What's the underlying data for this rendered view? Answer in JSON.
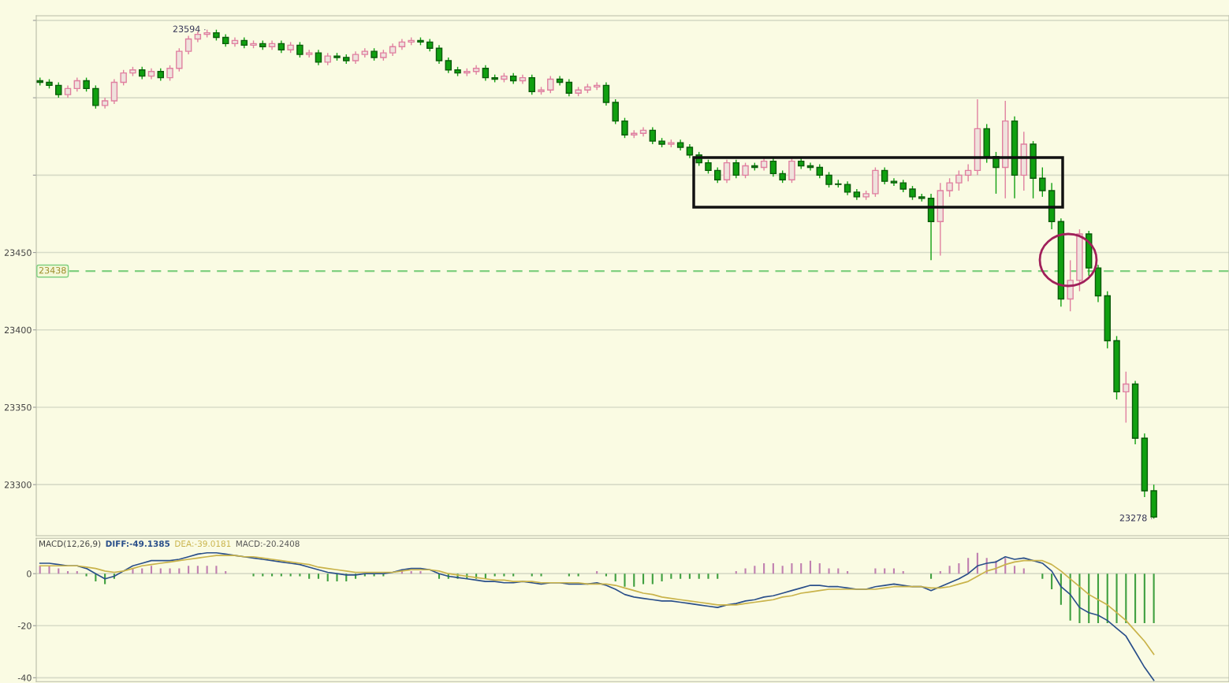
{
  "chart_data": [
    {
      "type": "candlestick",
      "tick_labels": "y",
      "grid": "y",
      "categories": [
        null,
        null,
        null,
        null,
        null,
        null,
        null,
        null,
        null,
        null,
        null,
        null,
        null,
        null,
        null,
        null,
        null,
        null,
        null,
        null,
        null,
        null,
        null,
        null,
        null,
        null,
        null,
        null,
        null,
        null,
        null,
        null,
        null,
        null,
        null,
        null,
        null,
        null,
        null,
        null,
        null,
        null,
        null,
        null,
        null,
        null,
        null,
        null,
        null,
        null,
        null,
        null,
        null,
        null,
        null,
        null,
        null,
        null,
        null,
        null,
        null,
        null,
        null,
        null,
        null,
        null,
        null,
        null,
        null,
        null,
        null,
        null,
        null,
        null,
        null,
        null,
        null,
        null,
        null,
        null,
        null,
        null,
        null,
        null,
        null,
        null,
        null,
        null,
        null,
        null,
        null,
        null,
        null,
        null,
        null,
        null,
        null,
        null,
        null,
        null,
        null,
        null,
        null,
        null,
        null,
        null,
        null,
        null,
        null,
        null,
        null,
        null,
        null,
        null,
        null,
        null,
        null,
        null,
        null,
        null,
        null
      ],
      "ohlc": [
        [
          23561,
          23563,
          23558,
          23560
        ],
        [
          23560,
          23562,
          23556,
          23558
        ],
        [
          23558,
          23560,
          23550,
          23552
        ],
        [
          23552,
          23558,
          23550,
          23556
        ],
        [
          23556,
          23563,
          23554,
          23561
        ],
        [
          23561,
          23563,
          23554,
          23556
        ],
        [
          23556,
          23558,
          23543,
          23545
        ],
        [
          23545,
          23550,
          23543,
          23548
        ],
        [
          23548,
          23562,
          23546,
          23560
        ],
        [
          23560,
          23568,
          23558,
          23566
        ],
        [
          23566,
          23570,
          23564,
          23568
        ],
        [
          23568,
          23570,
          23562,
          23564
        ],
        [
          23564,
          23569,
          23562,
          23567
        ],
        [
          23567,
          23569,
          23561,
          23563
        ],
        [
          23563,
          23571,
          23561,
          23569
        ],
        [
          23569,
          23582,
          23567,
          23580
        ],
        [
          23580,
          23590,
          23578,
          23588
        ],
        [
          23588,
          23593,
          23586,
          23591
        ],
        [
          23591,
          23594,
          23589,
          23592
        ],
        [
          23592,
          23594,
          23587,
          23589
        ],
        [
          23589,
          23591,
          23583,
          23585
        ],
        [
          23585,
          23589,
          23583,
          23587
        ],
        [
          23587,
          23589,
          23582,
          23584
        ],
        [
          23584,
          23587,
          23582,
          23585
        ],
        [
          23585,
          23587,
          23581,
          23583
        ],
        [
          23583,
          23587,
          23581,
          23585
        ],
        [
          23585,
          23587,
          23579,
          23581
        ],
        [
          23581,
          23586,
          23579,
          23584
        ],
        [
          23584,
          23586,
          23576,
          23578
        ],
        [
          23578,
          23581,
          23576,
          23579
        ],
        [
          23579,
          23581,
          23571,
          23573
        ],
        [
          23573,
          23579,
          23571,
          23577
        ],
        [
          23577,
          23579,
          23574,
          23576
        ],
        [
          23576,
          23578,
          23572,
          23574
        ],
        [
          23574,
          23580,
          23572,
          23578
        ],
        [
          23578,
          23582,
          23576,
          23580
        ],
        [
          23580,
          23582,
          23574,
          23576
        ],
        [
          23576,
          23581,
          23574,
          23579
        ],
        [
          23579,
          23585,
          23577,
          23583
        ],
        [
          23583,
          23588,
          23581,
          23586
        ],
        [
          23586,
          23589,
          23584,
          23587
        ],
        [
          23587,
          23589,
          23584,
          23586
        ],
        [
          23586,
          23588,
          23580,
          23582
        ],
        [
          23582,
          23584,
          23572,
          23574
        ],
        [
          23574,
          23576,
          23566,
          23568
        ],
        [
          23568,
          23570,
          23564,
          23566
        ],
        [
          23566,
          23569,
          23564,
          23567
        ],
        [
          23567,
          23571,
          23565,
          23569
        ],
        [
          23569,
          23571,
          23561,
          23563
        ],
        [
          23563,
          23565,
          23560,
          23562
        ],
        [
          23562,
          23566,
          23560,
          23564
        ],
        [
          23564,
          23566,
          23559,
          23561
        ],
        [
          23561,
          23565,
          23559,
          23563
        ],
        [
          23563,
          23565,
          23552,
          23554
        ],
        [
          23554,
          23557,
          23552,
          23555
        ],
        [
          23555,
          23564,
          23553,
          23562
        ],
        [
          23562,
          23564,
          23558,
          23560
        ],
        [
          23560,
          23562,
          23551,
          23553
        ],
        [
          23553,
          23557,
          23551,
          23555
        ],
        [
          23555,
          23559,
          23553,
          23557
        ],
        [
          23557,
          23560,
          23555,
          23558
        ],
        [
          23558,
          23560,
          23545,
          23547
        ],
        [
          23547,
          23549,
          23533,
          23535
        ],
        [
          23535,
          23537,
          23524,
          23526
        ],
        [
          23526,
          23529,
          23524,
          23527
        ],
        [
          23527,
          23531,
          23525,
          23529
        ],
        [
          23529,
          23531,
          23520,
          23522
        ],
        [
          23522,
          23524,
          23518,
          23520
        ],
        [
          23520,
          23523,
          23518,
          23521
        ],
        [
          23521,
          23523,
          23516,
          23518
        ],
        [
          23518,
          23520,
          23511,
          23513
        ],
        [
          23513,
          23515,
          23506,
          23508
        ],
        [
          23508,
          23510,
          23501,
          23503
        ],
        [
          23503,
          23505,
          23495,
          23497
        ],
        [
          23497,
          23510,
          23495,
          23508
        ],
        [
          23508,
          23510,
          23498,
          23500
        ],
        [
          23500,
          23508,
          23498,
          23506
        ],
        [
          23506,
          23508,
          23503,
          23505
        ],
        [
          23505,
          23511,
          23503,
          23509
        ],
        [
          23509,
          23511,
          23499,
          23501
        ],
        [
          23501,
          23503,
          23495,
          23497
        ],
        [
          23497,
          23511,
          23495,
          23509
        ],
        [
          23509,
          23511,
          23504,
          23506
        ],
        [
          23506,
          23508,
          23503,
          23505
        ],
        [
          23505,
          23507,
          23498,
          23500
        ],
        [
          23500,
          23502,
          23492,
          23494
        ],
        [
          23494,
          23497,
          23492,
          23494
        ],
        [
          23494,
          23496,
          23487,
          23489
        ],
        [
          23489,
          23491,
          23484,
          23486
        ],
        [
          23486,
          23490,
          23484,
          23488
        ],
        [
          23488,
          23505,
          23486,
          23503
        ],
        [
          23503,
          23505,
          23494,
          23496
        ],
        [
          23496,
          23498,
          23493,
          23495
        ],
        [
          23495,
          23497,
          23489,
          23491
        ],
        [
          23491,
          23493,
          23484,
          23486
        ],
        [
          23486,
          23488,
          23483,
          23485
        ],
        [
          23485,
          23488,
          23445,
          23470
        ],
        [
          23470,
          23495,
          23448,
          23490
        ],
        [
          23490,
          23498,
          23486,
          23495
        ],
        [
          23495,
          23503,
          23490,
          23500
        ],
        [
          23500,
          23507,
          23496,
          23503
        ],
        [
          23503,
          23549,
          23500,
          23530
        ],
        [
          23530,
          23533,
          23508,
          23512
        ],
        [
          23512,
          23515,
          23488,
          23505
        ],
        [
          23505,
          23548,
          23485,
          23535
        ],
        [
          23535,
          23538,
          23485,
          23500
        ],
        [
          23500,
          23528,
          23490,
          23520
        ],
        [
          23520,
          23522,
          23485,
          23498
        ],
        [
          23498,
          23505,
          23486,
          23490
        ],
        [
          23490,
          23495,
          23465,
          23470
        ],
        [
          23470,
          23472,
          23415,
          23420
        ],
        [
          23420,
          23445,
          23412,
          23432
        ],
        [
          23432,
          23465,
          23425,
          23462
        ],
        [
          23462,
          23464,
          23435,
          23440
        ],
        [
          23440,
          23442,
          23418,
          23422
        ],
        [
          23422,
          23425,
          23388,
          23393
        ],
        [
          23393,
          23396,
          23355,
          23360
        ],
        [
          23360,
          23373,
          23340,
          23365
        ],
        [
          23365,
          23367,
          23326,
          23330
        ],
        [
          23330,
          23333,
          23292,
          23296
        ],
        [
          23296,
          23300,
          23278,
          23279
        ]
      ],
      "colors": [
        "#10a010",
        "#10a010",
        "#10a010",
        "#e080a0",
        "#e080a0",
        "#10a010",
        "#10a010",
        "#e080a0",
        "#e080a0",
        "#e080a0",
        "#e080a0",
        "#10a010",
        "#e080a0",
        "#10a010",
        "#e080a0",
        "#e080a0",
        "#e080a0",
        "#e080a0",
        "#e080a0",
        "#10a010",
        "#10a010",
        "#e080a0",
        "#10a010",
        "#e080a0",
        "#10a010",
        "#e080a0",
        "#10a010",
        "#e080a0",
        "#10a010",
        "#e080a0",
        "#10a010",
        "#e080a0",
        "#10a010",
        "#10a010",
        "#e080a0",
        "#e080a0",
        "#10a010",
        "#e080a0",
        "#e080a0",
        "#e080a0",
        "#e080a0",
        "#10a010",
        "#10a010",
        "#10a010",
        "#10a010",
        "#10a010",
        "#e080a0",
        "#e080a0",
        "#10a010",
        "#10a010",
        "#e080a0",
        "#10a010",
        "#e080a0",
        "#10a010",
        "#e080a0",
        "#e080a0",
        "#10a010",
        "#10a010",
        "#e080a0",
        "#e080a0",
        "#e080a0",
        "#10a010",
        "#10a010",
        "#10a010",
        "#e080a0",
        "#e080a0",
        "#10a010",
        "#10a010",
        "#e080a0",
        "#10a010",
        "#10a010",
        "#10a010",
        "#10a010",
        "#10a010",
        "#e080a0",
        "#10a010",
        "#e080a0",
        "#10a010",
        "#e080a0",
        "#10a010",
        "#10a010",
        "#e080a0",
        "#10a010",
        "#10a010",
        "#10a010",
        "#10a010",
        "#10a010",
        "#10a010",
        "#10a010",
        "#e080a0",
        "#e080a0",
        "#10a010",
        "#10a010",
        "#10a010",
        "#10a010",
        "#10a010",
        "#10a010",
        "#e080a0",
        "#e080a0",
        "#e080a0",
        "#e080a0",
        "#e080a0",
        "#10a010",
        "#10a010",
        "#e080a0",
        "#10a010",
        "#e080a0",
        "#10a010",
        "#10a010",
        "#10a010",
        "#10a010",
        "#e080a0",
        "#e080a0",
        "#10a010",
        "#10a010",
        "#10a010",
        "#10a010",
        "#e080a0",
        "#10a010",
        "#10a010",
        "#10a010"
      ],
      "ylim": [
        23267,
        23603
      ],
      "yticks": [
        23300,
        23350,
        23400,
        23450,
        {
          "value": 23500,
          "label": null
        },
        {
          "value": 23550,
          "label": null
        },
        {
          "value": 23600,
          "label": null
        }
      ],
      "ref_lines": [
        {
          "axis": "y",
          "value": 23438,
          "label": "23438",
          "color": "#80d080",
          "line_style": "dashed"
        }
      ],
      "annotations": [
        "23594",
        "23278"
      ]
    },
    {
      "type": "bar",
      "tick_labels": "y",
      "grid": "y",
      "title": "MACD(12,26,9)",
      "categories": [
        null,
        null,
        null,
        null,
        null,
        null,
        null,
        null,
        null,
        null,
        null,
        null,
        null,
        null,
        null,
        null,
        null,
        null,
        null,
        null,
        null,
        null,
        null,
        null,
        null,
        null,
        null,
        null,
        null,
        null,
        null,
        null,
        null,
        null,
        null,
        null,
        null,
        null,
        null,
        null,
        null,
        null,
        null,
        null,
        null,
        null,
        null,
        null,
        null,
        null,
        null,
        null,
        null,
        null,
        null,
        null,
        null,
        null,
        null,
        null,
        null,
        null,
        null,
        null,
        null,
        null,
        null,
        null,
        null,
        null,
        null,
        null,
        null,
        null,
        null,
        null,
        null,
        null,
        null,
        null,
        null,
        null,
        null,
        null,
        null,
        null,
        null,
        null,
        null,
        null,
        null,
        null,
        null,
        null,
        null,
        null,
        null,
        null,
        null,
        null,
        null,
        null,
        null,
        null,
        null,
        null,
        null,
        null,
        null,
        null,
        null,
        null,
        null,
        null,
        null,
        null,
        null,
        null,
        null,
        null,
        null
      ],
      "annotations": [
        "DIFF:-49.1385",
        "DEA:-39.0181",
        "MACD:-20.2408"
      ],
      "ylim": [
        -41.5,
        13.6
      ],
      "yticks": [
        0,
        -20,
        -40
      ],
      "series": [
        {
          "type": "line",
          "color": "#2a4f8a",
          "values": [
            4,
            4,
            3.5,
            3,
            3,
            2,
            0,
            -2,
            -1,
            1,
            3,
            4,
            5,
            5,
            5,
            5.5,
            6.5,
            7.5,
            8,
            8,
            7.5,
            7,
            6.5,
            6,
            5.5,
            5,
            4.5,
            4,
            3.5,
            2.5,
            1.5,
            0.5,
            0,
            -0.5,
            -0.5,
            0,
            0,
            0,
            0.5,
            1.5,
            2,
            2,
            1.5,
            0,
            -1,
            -1.5,
            -2,
            -2.5,
            -3,
            -3,
            -3.5,
            -3.5,
            -3,
            -3.5,
            -4,
            -3.5,
            -3.5,
            -4,
            -4,
            -4,
            -3.5,
            -4.5,
            -6,
            -8,
            -9,
            -9.5,
            -10,
            -10.5,
            -10.5,
            -11,
            -11.5,
            -12,
            -12.5,
            -13,
            -12,
            -11.5,
            -10.5,
            -10,
            -9,
            -8.5,
            -7.5,
            -6.5,
            -5.5,
            -4.5,
            -4.5,
            -5,
            -5,
            -5.5,
            -6,
            -6,
            -5,
            -4.5,
            -4,
            -4.5,
            -5,
            -5,
            -6.5,
            -5,
            -3.5,
            -2,
            0,
            3,
            4,
            4.5,
            6.5,
            5.5,
            6,
            5,
            4,
            1,
            -5,
            -8,
            -13,
            -15,
            -16,
            -18,
            -21,
            -24,
            -30,
            -36,
            -41
          ]
        },
        {
          "type": "line",
          "color": "#c9b34a",
          "values": [
            3,
            3,
            3,
            3,
            3,
            2.5,
            2,
            1,
            0.5,
            1,
            2,
            3,
            3.5,
            4,
            4.5,
            5,
            5.5,
            6,
            6.5,
            7,
            7,
            7,
            6.5,
            6.5,
            6,
            5.5,
            5,
            4.5,
            4,
            3.5,
            2.5,
            2,
            1.5,
            1,
            0.5,
            0.5,
            0.5,
            0.5,
            0.5,
            1,
            1.5,
            1.5,
            1.5,
            1,
            0,
            -0.5,
            -1,
            -1.5,
            -2,
            -2.5,
            -2.5,
            -3,
            -3,
            -3,
            -3.5,
            -3.5,
            -3.5,
            -3.5,
            -3.5,
            -4,
            -4,
            -4,
            -4.5,
            -5.5,
            -6.5,
            -7.5,
            -8,
            -9,
            -9.5,
            -10,
            -10.5,
            -11,
            -11.5,
            -12,
            -12,
            -12,
            -11.5,
            -11,
            -10.5,
            -10,
            -9,
            -8.5,
            -7.5,
            -7,
            -6.5,
            -6,
            -6,
            -6,
            -6,
            -6,
            -6,
            -5.5,
            -5,
            -5,
            -5,
            -5,
            -5.5,
            -5.5,
            -5,
            -4,
            -3,
            -1,
            1,
            2,
            3.5,
            4.5,
            5,
            5,
            5,
            3.5,
            1,
            -2,
            -5,
            -8,
            -10,
            -12,
            -15,
            -18,
            -22,
            -26,
            -31
          ]
        },
        {
          "type": "bar",
          "values": [
            3,
            3,
            2,
            1,
            1,
            -1,
            -3,
            -4,
            -2,
            0,
            2,
            2,
            3,
            2,
            2,
            2,
            3,
            3,
            3,
            3,
            1,
            0,
            0,
            -1,
            -1,
            -1,
            -1,
            -1,
            -1,
            -2,
            -2,
            -3,
            -3,
            -3,
            -2,
            -1,
            -1,
            -1,
            0,
            1,
            1,
            1,
            0,
            -2,
            -2,
            -2,
            -2,
            -2,
            -2,
            -1,
            -1,
            -1,
            0,
            -1,
            -1,
            0,
            0,
            -1,
            -1,
            0,
            1,
            -1,
            -3,
            -5,
            -5,
            -4,
            -4,
            -3,
            -2,
            -2,
            -2,
            -2,
            -2,
            -2,
            0,
            1,
            2,
            3,
            4,
            4,
            3,
            4,
            4,
            5,
            4,
            2,
            2,
            1,
            0,
            0,
            2,
            2,
            2,
            1,
            0,
            0,
            -2,
            1,
            3,
            4,
            6,
            8,
            6,
            5,
            6,
            3,
            2,
            0,
            -2,
            -6,
            -12,
            -18,
            -19,
            -19,
            -19,
            -19,
            -19,
            -19,
            -19,
            -19,
            -19
          ],
          "colors": [
            "#c080b0",
            "#c080b0",
            "#c080b0",
            "#c080b0",
            "#c080b0",
            "#40a040",
            "#40a040",
            "#40a040",
            "#40a040",
            "#40a040",
            "#c080b0",
            "#c080b0",
            "#c080b0",
            "#c080b0",
            "#c080b0",
            "#c080b0",
            "#c080b0",
            "#c080b0",
            "#c080b0",
            "#c080b0",
            "#c080b0",
            "#40a040",
            "#40a040",
            "#40a040",
            "#40a040",
            "#40a040",
            "#40a040",
            "#40a040",
            "#40a040",
            "#40a040",
            "#40a040",
            "#40a040",
            "#40a040",
            "#40a040",
            "#40a040",
            "#40a040",
            "#40a040",
            "#40a040",
            "#40a040",
            "#c080b0",
            "#c080b0",
            "#c080b0",
            "#40a040",
            "#40a040",
            "#40a040",
            "#40a040",
            "#40a040",
            "#40a040",
            "#40a040",
            "#40a040",
            "#40a040",
            "#40a040",
            "#40a040",
            "#40a040",
            "#40a040",
            "#40a040",
            "#40a040",
            "#40a040",
            "#40a040",
            "#40a040",
            "#c080b0",
            "#40a040",
            "#40a040",
            "#40a040",
            "#40a040",
            "#40a040",
            "#40a040",
            "#40a040",
            "#40a040",
            "#40a040",
            "#40a040",
            "#40a040",
            "#40a040",
            "#40a040",
            "#40a040",
            "#c080b0",
            "#c080b0",
            "#c080b0",
            "#c080b0",
            "#c080b0",
            "#c080b0",
            "#c080b0",
            "#c080b0",
            "#c080b0",
            "#c080b0",
            "#c080b0",
            "#c080b0",
            "#c080b0",
            "#40a040",
            "#40a040",
            "#c080b0",
            "#c080b0",
            "#c080b0",
            "#c080b0",
            "#40a040",
            "#40a040",
            "#40a040",
            "#c080b0",
            "#c080b0",
            "#c080b0",
            "#c080b0",
            "#c080b0",
            "#c080b0",
            "#c080b0",
            "#c080b0",
            "#c080b0",
            "#c080b0",
            "#40a040",
            "#40a040",
            "#40a040",
            "#40a040",
            "#40a040",
            "#40a040",
            "#40a040",
            "#40a040",
            "#40a040",
            "#40a040",
            "#40a040",
            "#40a040",
            "#40a040",
            "#40a040"
          ]
        }
      ]
    }
  ]
}
